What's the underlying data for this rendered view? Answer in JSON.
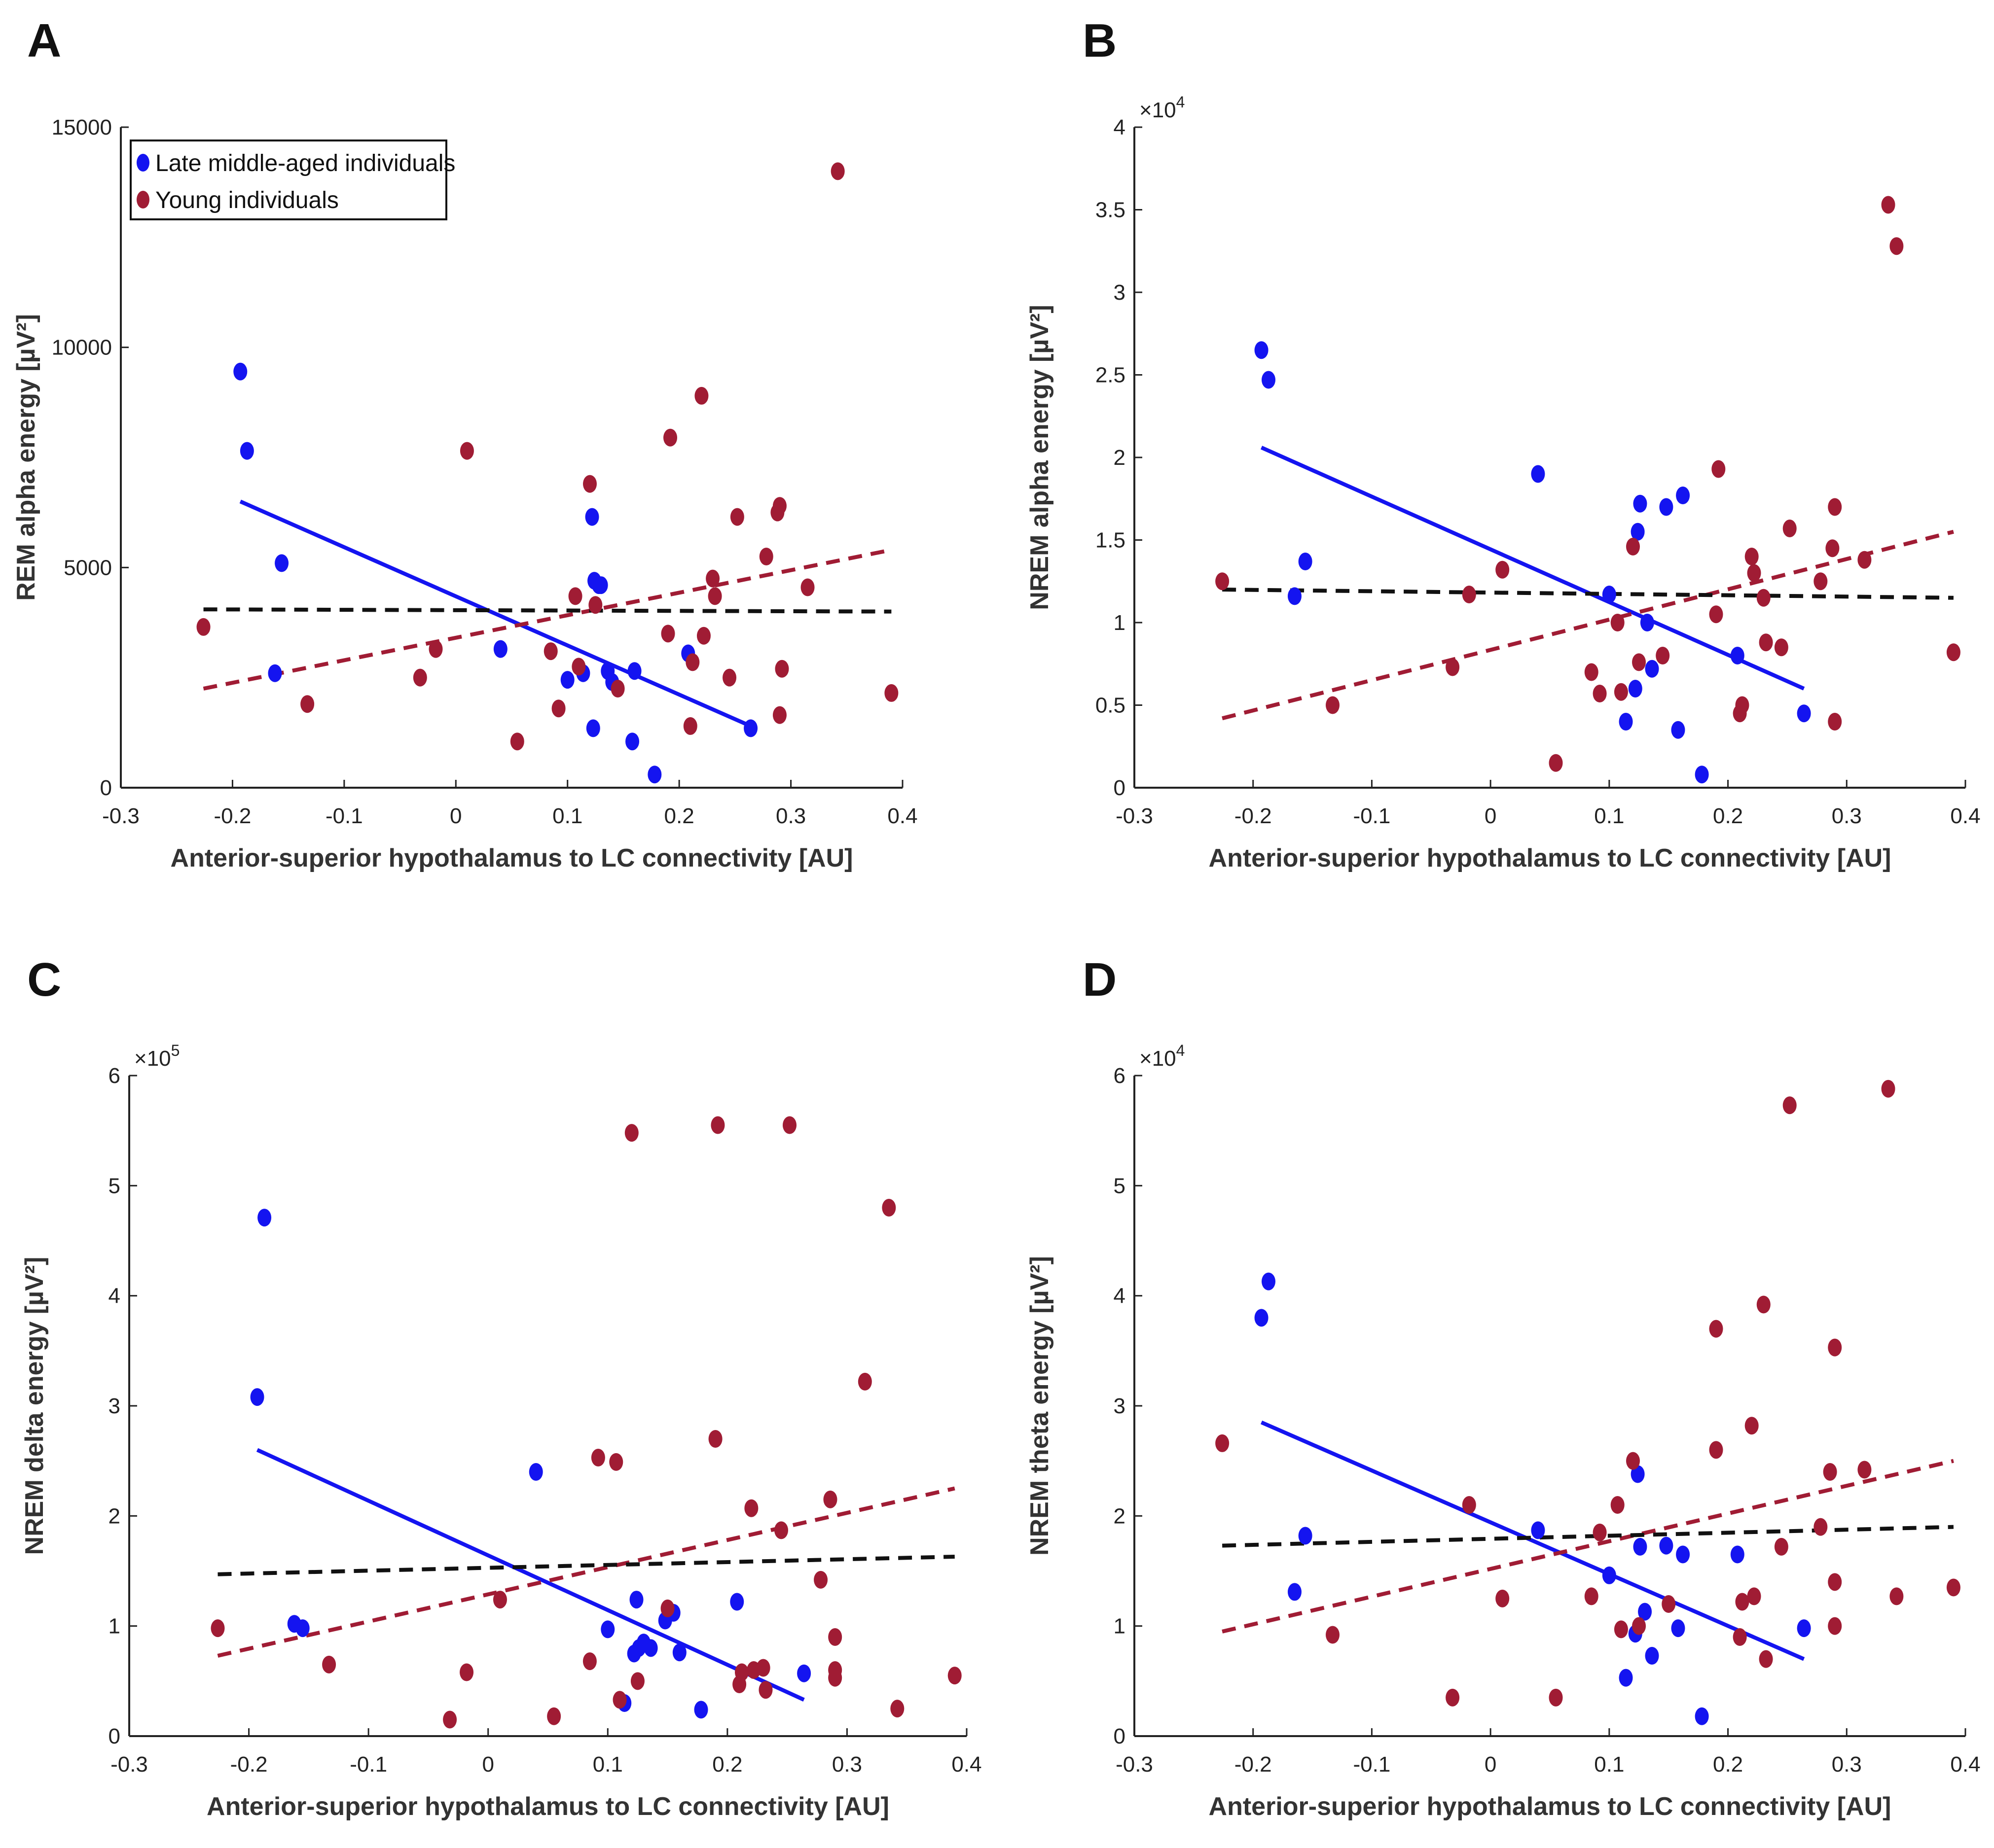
{
  "figure": {
    "panel_labels": [
      "A",
      "B",
      "C",
      "D"
    ]
  },
  "legend": {
    "late_label": "Late middle-aged individuals",
    "young_label": "Young individuals"
  },
  "colors": {
    "late": "#1414f0",
    "young": "#a01c34",
    "overall": "#111111"
  },
  "chart_data": [
    {
      "panel": "A",
      "type": "scatter",
      "xlabel": "Anterior-superior hypothalamus to LC connectivity [AU]",
      "ylabel": "REM alpha energy [µV²]",
      "xlim": [
        -0.3,
        0.4
      ],
      "ylim": [
        0,
        15000
      ],
      "xticks": [
        -0.3,
        -0.2,
        -0.1,
        0,
        0.1,
        0.2,
        0.3,
        0.4
      ],
      "xtick_labels": [
        "-0.3",
        "-0.2",
        "-0.1",
        "0",
        "0.1",
        "0.2",
        "0.3",
        "0.4"
      ],
      "yticks": [
        0,
        5000,
        10000,
        15000
      ],
      "ytick_labels": [
        "0",
        "5000",
        "10000",
        "15000"
      ],
      "y_multiplier": "",
      "series": [
        {
          "name": "Late middle-aged individuals",
          "color": "late",
          "x": [
            -0.193,
            -0.187,
            -0.156,
            -0.162,
            0.04,
            0.1,
            0.114,
            0.122,
            0.124,
            0.128,
            0.13,
            0.136,
            0.14,
            0.158,
            0.16,
            0.178,
            0.208,
            0.264,
            0.123
          ],
          "y": [
            9450,
            7650,
            5100,
            2600,
            3150,
            2450,
            2600,
            6150,
            4700,
            4600,
            4600,
            2650,
            2400,
            1050,
            2650,
            300,
            3050,
            1350,
            1350
          ]
        },
        {
          "name": "Young individuals",
          "color": "young",
          "x": [
            -0.226,
            -0.133,
            -0.032,
            -0.018,
            0.01,
            0.055,
            0.085,
            0.092,
            0.107,
            0.11,
            0.12,
            0.125,
            0.145,
            0.19,
            0.192,
            0.21,
            0.212,
            0.22,
            0.222,
            0.23,
            0.232,
            0.245,
            0.252,
            0.278,
            0.288,
            0.29,
            0.292,
            0.29,
            0.315,
            0.342,
            0.39
          ],
          "y": [
            3650,
            1900,
            2500,
            3150,
            7650,
            1050,
            3100,
            1800,
            4350,
            2750,
            6900,
            4150,
            2250,
            3500,
            7950,
            1400,
            2850,
            8900,
            3450,
            4750,
            4350,
            2500,
            6150,
            5250,
            6250,
            6400,
            2700,
            1650,
            4550,
            14000,
            2150
          ]
        }
      ],
      "fits": [
        {
          "name": "Late middle-aged individuals",
          "style": "solid",
          "color": "late",
          "x": [
            -0.193,
            0.264
          ],
          "y": [
            6500,
            1400
          ]
        },
        {
          "name": "Young individuals",
          "style": "dashed",
          "color": "young",
          "x": [
            -0.226,
            0.39
          ],
          "y": [
            2250,
            5400
          ]
        },
        {
          "name": "All individuals",
          "style": "dashed",
          "color": "overall",
          "x": [
            -0.226,
            0.39
          ],
          "y": [
            4050,
            4000
          ]
        }
      ]
    },
    {
      "panel": "B",
      "type": "scatter",
      "xlabel": "Anterior-superior hypothalamus to LC connectivity [AU]",
      "ylabel": "NREM alpha energy [µV²]",
      "xlim": [
        -0.3,
        0.4
      ],
      "ylim": [
        0,
        4
      ],
      "xticks": [
        -0.3,
        -0.2,
        -0.1,
        0,
        0.1,
        0.2,
        0.3,
        0.4
      ],
      "xtick_labels": [
        "-0.3",
        "-0.2",
        "-0.1",
        "0",
        "0.1",
        "0.2",
        "0.3",
        "0.4"
      ],
      "yticks": [
        0,
        0.5,
        1,
        1.5,
        2,
        2.5,
        3,
        3.5,
        4
      ],
      "ytick_labels": [
        "0",
        "0.5",
        "1",
        "1.5",
        "2",
        "2.5",
        "3",
        "3.5",
        "4"
      ],
      "y_multiplier": "×10",
      "y_multiplier_exp": "4",
      "series": [
        {
          "name": "Late middle-aged individuals",
          "color": "late",
          "x": [
            -0.193,
            -0.187,
            -0.156,
            -0.165,
            0.04,
            0.1,
            0.114,
            0.122,
            0.124,
            0.126,
            0.132,
            0.136,
            0.148,
            0.158,
            0.162,
            0.178,
            0.208,
            0.264
          ],
          "y": [
            2.65,
            2.47,
            1.37,
            1.16,
            1.9,
            1.17,
            0.4,
            0.6,
            1.55,
            1.72,
            1.0,
            0.72,
            1.7,
            0.35,
            1.77,
            0.08,
            0.8,
            0.45
          ]
        },
        {
          "name": "Young individuals",
          "color": "young",
          "x": [
            -0.226,
            -0.133,
            -0.032,
            -0.018,
            0.01,
            0.055,
            0.085,
            0.092,
            0.107,
            0.11,
            0.12,
            0.125,
            0.145,
            0.19,
            0.192,
            0.21,
            0.212,
            0.22,
            0.222,
            0.23,
            0.232,
            0.245,
            0.252,
            0.278,
            0.288,
            0.29,
            0.29,
            0.315,
            0.335,
            0.342,
            0.39
          ],
          "y": [
            1.25,
            0.5,
            0.73,
            1.17,
            1.32,
            0.15,
            0.7,
            0.57,
            1.0,
            0.58,
            1.46,
            0.76,
            0.8,
            1.05,
            1.93,
            0.45,
            0.5,
            1.4,
            1.3,
            1.15,
            0.88,
            0.85,
            1.57,
            1.25,
            1.45,
            1.7,
            0.4,
            1.38,
            3.53,
            3.28,
            0.82
          ]
        }
      ],
      "fits": [
        {
          "name": "Late middle-aged individuals",
          "style": "solid",
          "color": "late",
          "x": [
            -0.193,
            0.264
          ],
          "y": [
            2.06,
            0.6
          ]
        },
        {
          "name": "Young individuals",
          "style": "dashed",
          "color": "young",
          "x": [
            -0.226,
            0.39
          ],
          "y": [
            0.42,
            1.55
          ]
        },
        {
          "name": "All individuals",
          "style": "dashed",
          "color": "overall",
          "x": [
            -0.226,
            0.39
          ],
          "y": [
            1.2,
            1.15
          ]
        }
      ]
    },
    {
      "panel": "C",
      "type": "scatter",
      "xlabel": "Anterior-superior hypothalamus to LC connectivity [AU]",
      "ylabel": "NREM delta energy [µV²]",
      "xlim": [
        -0.3,
        0.4
      ],
      "ylim": [
        0,
        6
      ],
      "xticks": [
        -0.3,
        -0.2,
        -0.1,
        0,
        0.1,
        0.2,
        0.3,
        0.4
      ],
      "xtick_labels": [
        "-0.3",
        "-0.2",
        "-0.1",
        "0",
        "0.1",
        "0.2",
        "0.3",
        "0.4"
      ],
      "yticks": [
        0,
        1,
        2,
        3,
        4,
        5,
        6
      ],
      "ytick_labels": [
        "0",
        "1",
        "2",
        "3",
        "4",
        "5",
        "6"
      ],
      "y_multiplier": "×10",
      "y_multiplier_exp": "5",
      "series": [
        {
          "name": "Late middle-aged individuals",
          "color": "late",
          "x": [
            -0.193,
            -0.187,
            -0.162,
            -0.155,
            0.04,
            0.1,
            0.114,
            0.122,
            0.124,
            0.126,
            0.13,
            0.136,
            0.148,
            0.155,
            0.16,
            0.178,
            0.208,
            0.264
          ],
          "y": [
            3.08,
            4.71,
            1.02,
            0.98,
            2.4,
            0.97,
            0.3,
            0.75,
            1.24,
            0.8,
            0.85,
            0.8,
            1.05,
            1.12,
            0.76,
            0.24,
            1.22,
            0.57
          ]
        },
        {
          "name": "Young individuals",
          "color": "young",
          "x": [
            -0.226,
            -0.133,
            -0.032,
            -0.018,
            0.01,
            0.055,
            0.085,
            0.092,
            0.107,
            0.11,
            0.12,
            0.125,
            0.15,
            0.19,
            0.192,
            0.21,
            0.212,
            0.22,
            0.222,
            0.23,
            0.232,
            0.245,
            0.252,
            0.278,
            0.286,
            0.29,
            0.29,
            0.29,
            0.315,
            0.335,
            0.342,
            0.39
          ],
          "y": [
            0.98,
            0.65,
            0.15,
            0.58,
            1.24,
            0.18,
            0.68,
            2.53,
            2.49,
            0.33,
            5.48,
            0.5,
            1.16,
            2.7,
            5.55,
            0.47,
            0.58,
            2.07,
            0.6,
            0.62,
            0.42,
            1.87,
            5.55,
            1.42,
            2.15,
            0.6,
            0.53,
            0.9,
            3.22,
            4.8,
            0.25,
            0.55
          ]
        }
      ],
      "fits": [
        {
          "name": "Late middle-aged individuals",
          "style": "solid",
          "color": "late",
          "x": [
            -0.193,
            0.264
          ],
          "y": [
            2.6,
            0.33
          ]
        },
        {
          "name": "Young individuals",
          "style": "dashed",
          "color": "young",
          "x": [
            -0.226,
            0.39
          ],
          "y": [
            0.73,
            2.25
          ]
        },
        {
          "name": "All individuals",
          "style": "dashed",
          "color": "overall",
          "x": [
            -0.226,
            0.39
          ],
          "y": [
            1.47,
            1.63
          ]
        }
      ]
    },
    {
      "panel": "D",
      "type": "scatter",
      "xlabel": "Anterior-superior hypothalamus to LC connectivity [AU]",
      "ylabel": "NREM theta energy [µV²]",
      "xlim": [
        -0.3,
        0.4
      ],
      "ylim": [
        0,
        6
      ],
      "xticks": [
        -0.3,
        -0.2,
        -0.1,
        0,
        0.1,
        0.2,
        0.3,
        0.4
      ],
      "xtick_labels": [
        "-0.3",
        "-0.2",
        "-0.1",
        "0",
        "0.1",
        "0.2",
        "0.3",
        "0.4"
      ],
      "yticks": [
        0,
        1,
        2,
        3,
        4,
        5,
        6
      ],
      "ytick_labels": [
        "0",
        "1",
        "2",
        "3",
        "4",
        "5",
        "6"
      ],
      "y_multiplier": "×10",
      "y_multiplier_exp": "4",
      "series": [
        {
          "name": "Late middle-aged individuals",
          "color": "late",
          "x": [
            -0.193,
            -0.187,
            -0.156,
            -0.165,
            0.04,
            0.1,
            0.114,
            0.122,
            0.124,
            0.126,
            0.13,
            0.136,
            0.148,
            0.158,
            0.162,
            0.178,
            0.208,
            0.264
          ],
          "y": [
            3.8,
            4.13,
            1.82,
            1.31,
            1.87,
            1.46,
            0.53,
            0.93,
            2.38,
            1.72,
            1.13,
            0.73,
            1.73,
            0.98,
            1.65,
            0.18,
            1.65,
            0.98
          ]
        },
        {
          "name": "Young individuals",
          "color": "young",
          "x": [
            -0.226,
            -0.133,
            -0.032,
            -0.018,
            0.01,
            0.055,
            0.085,
            0.092,
            0.107,
            0.11,
            0.12,
            0.125,
            0.15,
            0.19,
            0.19,
            0.21,
            0.212,
            0.22,
            0.222,
            0.23,
            0.232,
            0.245,
            0.252,
            0.278,
            0.286,
            0.29,
            0.29,
            0.29,
            0.315,
            0.335,
            0.342,
            0.39
          ],
          "y": [
            2.66,
            0.92,
            0.35,
            2.1,
            1.25,
            0.35,
            1.27,
            1.85,
            2.1,
            0.97,
            2.5,
            1.0,
            1.2,
            2.6,
            3.7,
            0.9,
            1.22,
            2.82,
            1.27,
            3.92,
            0.7,
            1.72,
            5.73,
            1.9,
            2.4,
            3.53,
            1.4,
            1.0,
            2.42,
            5.88,
            1.27,
            1.35
          ]
        }
      ],
      "fits": [
        {
          "name": "Late middle-aged individuals",
          "style": "solid",
          "color": "late",
          "x": [
            -0.193,
            0.264
          ],
          "y": [
            2.85,
            0.7
          ]
        },
        {
          "name": "Young individuals",
          "style": "dashed",
          "color": "young",
          "x": [
            -0.226,
            0.39
          ],
          "y": [
            0.95,
            2.5
          ]
        },
        {
          "name": "All individuals",
          "style": "dashed",
          "color": "overall",
          "x": [
            -0.226,
            0.39
          ],
          "y": [
            1.73,
            1.9
          ]
        }
      ]
    }
  ]
}
